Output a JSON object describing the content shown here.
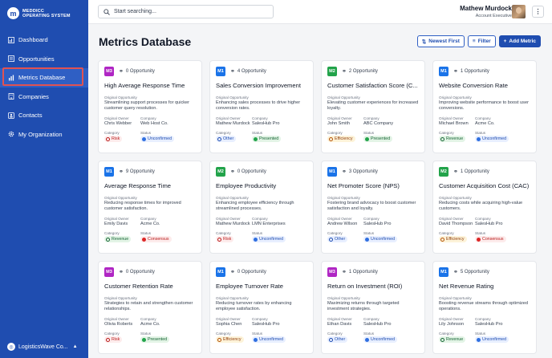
{
  "app": {
    "name_line1": "MEDDICC",
    "name_line2": "OPERATING SYSTEM"
  },
  "sidebar": {
    "items": [
      {
        "label": "Dashboard",
        "icon": "chart-bar-icon"
      },
      {
        "label": "Opportunities",
        "icon": "list-icon"
      },
      {
        "label": "Metrics Database",
        "icon": "chart-icon",
        "active": true
      },
      {
        "label": "Companies",
        "icon": "building-icon"
      },
      {
        "label": "Contacts",
        "icon": "contacts-icon"
      },
      {
        "label": "My Organization",
        "icon": "gear-icon"
      }
    ],
    "org": "LogisticsWave Co..."
  },
  "search": {
    "placeholder": "Start searching..."
  },
  "user": {
    "name": "Mathew Murdock",
    "role": "Account Executive"
  },
  "page": {
    "title": "Metrics Database"
  },
  "toolbar": {
    "sort_label": "Newest First",
    "filter_label": "Filter",
    "add_label": "Add Metric"
  },
  "labels": {
    "original_opportunity": "Original Opportunity",
    "original_owner": "Original Owner",
    "company": "Company",
    "category": "Category",
    "status": "Status"
  },
  "colors": {
    "M1": "#1a73e8",
    "M2": "#22a34a",
    "M3": "#b026c4",
    "accent": "#1f4db0"
  },
  "cards": [
    {
      "badge": "M3",
      "opportunity": "0 Opportunity",
      "title": "High Average Response Time",
      "description": "Streamlining support processes for quicker customer query resolution.",
      "owner": "Chris Webber",
      "company": "Web Host Co.",
      "category": "Risk",
      "status": "Unconfirmed"
    },
    {
      "badge": "M1",
      "opportunity": "4 Opportunity",
      "title": "Sales Conversion Improvement",
      "description": "Enhancing sales processes to drive higher conversion rates.",
      "owner": "Mathew Murdock",
      "company": "SalesHub Pro",
      "category": "Other",
      "status": "Presented"
    },
    {
      "badge": "M2",
      "opportunity": "2 Opportunity",
      "title": "Customer Satisfaction Score (C...",
      "description": "Elevating customer experiences for increased loyalty.",
      "owner": "John Smith",
      "company": "ABC Company",
      "category": "Efficiency",
      "status": "Presented"
    },
    {
      "badge": "M1",
      "opportunity": "1 Opportunity",
      "title": "Website Conversion Rate",
      "description": "Improving website performance to boost user conversions.",
      "owner": "Michael Brown",
      "company": "Acme Co.",
      "category": "Revenue",
      "status": "Unconfirmed"
    },
    {
      "badge": "M1",
      "opportunity": "9 Opportunity",
      "title": "Average Response Time",
      "description": "Reducing response times for improved customer satisfaction.",
      "owner": "Emily Davis",
      "company": "Acme Co.",
      "category": "Revenue",
      "status": "Consensus"
    },
    {
      "badge": "M2",
      "opportunity": "0 Opportunity",
      "title": "Employee Productivity",
      "description": "Enhancing employee efficiency through streamlined processes.",
      "owner": "Mathew Murdock",
      "company": "LMN Enterprises",
      "category": "Risk",
      "status": "Unconfirmed"
    },
    {
      "badge": "M1",
      "opportunity": "3 Opportunity",
      "title": "Net Promoter Score (NPS)",
      "description": "Fostering brand advocacy to boost customer satisfaction and loyalty.",
      "owner": "Andrew Wilson",
      "company": "SalesHub Pro",
      "category": "Other",
      "status": "Unconfirmed"
    },
    {
      "badge": "M2",
      "opportunity": "1 Opportunity",
      "title": "Customer Acquisition Cost (CAC)",
      "description": "Reducing costs while acquiring high-value customers.",
      "owner": "David Thompson",
      "company": "SalesHub Pro",
      "category": "Efficiency",
      "status": "Consensus"
    },
    {
      "badge": "M3",
      "opportunity": "0 Opportunity",
      "title": "Customer Retention Rate",
      "description": "Strategies to retain and strengthen customer relationships.",
      "owner": "Olivia Roberts",
      "company": "Acme Co.",
      "category": "Risk",
      "status": "Presented"
    },
    {
      "badge": "M1",
      "opportunity": "0 Opportunity",
      "title": "Employee Turnover Rate",
      "description": "Reducing turnover rates by enhancing employee satisfaction.",
      "owner": "Sophia Chen",
      "company": "SalesHub Pro",
      "category": "Efficiency",
      "status": "Unconfirmed"
    },
    {
      "badge": "M3",
      "opportunity": "1 Opportunity",
      "title": "Return on Investment (ROI)",
      "description": "Maximizing returns through targeted investment strategies.",
      "owner": "Ethan Davis",
      "company": "SalesHub Pro",
      "category": "Other",
      "status": "Unconfirmed"
    },
    {
      "badge": "M1",
      "opportunity": "5 Opportunity",
      "title": "Net Revenue Rating",
      "description": "Boosting revenue streams through optimized operations.",
      "owner": "Lily Johnson",
      "company": "SalesHub Pro",
      "category": "Revenue",
      "status": "Unconfirmed"
    }
  ]
}
